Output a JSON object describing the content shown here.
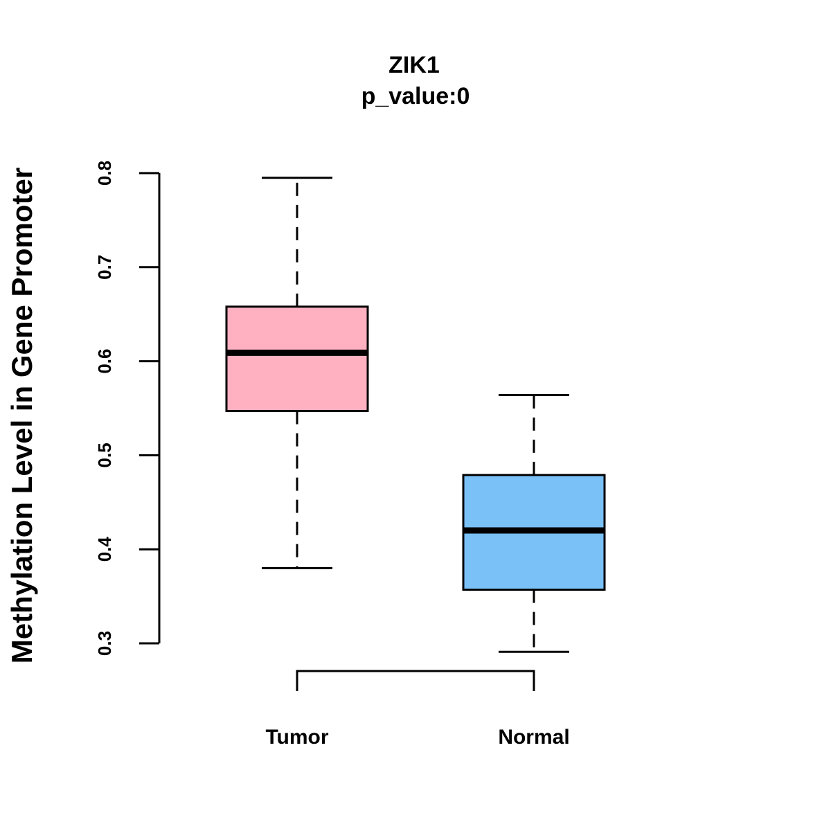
{
  "chart_data": {
    "type": "boxplot",
    "title": "ZIK1",
    "subtitle": "p_value:0",
    "xlabel": "",
    "ylabel": "Methylation Level in Gene Promoter",
    "ylim": [
      0.3,
      0.8
    ],
    "yticks": [
      "0.3",
      "0.4",
      "0.5",
      "0.6",
      "0.7",
      "0.8"
    ],
    "categories": [
      "Tumor",
      "Normal"
    ],
    "boxes": [
      {
        "label": "Tumor",
        "min": 0.38,
        "q1": 0.547,
        "median": 0.609,
        "q3": 0.658,
        "max": 0.795,
        "color": "#FFB1C1"
      },
      {
        "label": "Normal",
        "min": 0.291,
        "q1": 0.357,
        "median": 0.42,
        "q3": 0.479,
        "max": 0.564,
        "color": "#7AC1F8"
      }
    ],
    "comparison_bracket": [
      "Tumor",
      "Normal"
    ],
    "grid": false
  }
}
